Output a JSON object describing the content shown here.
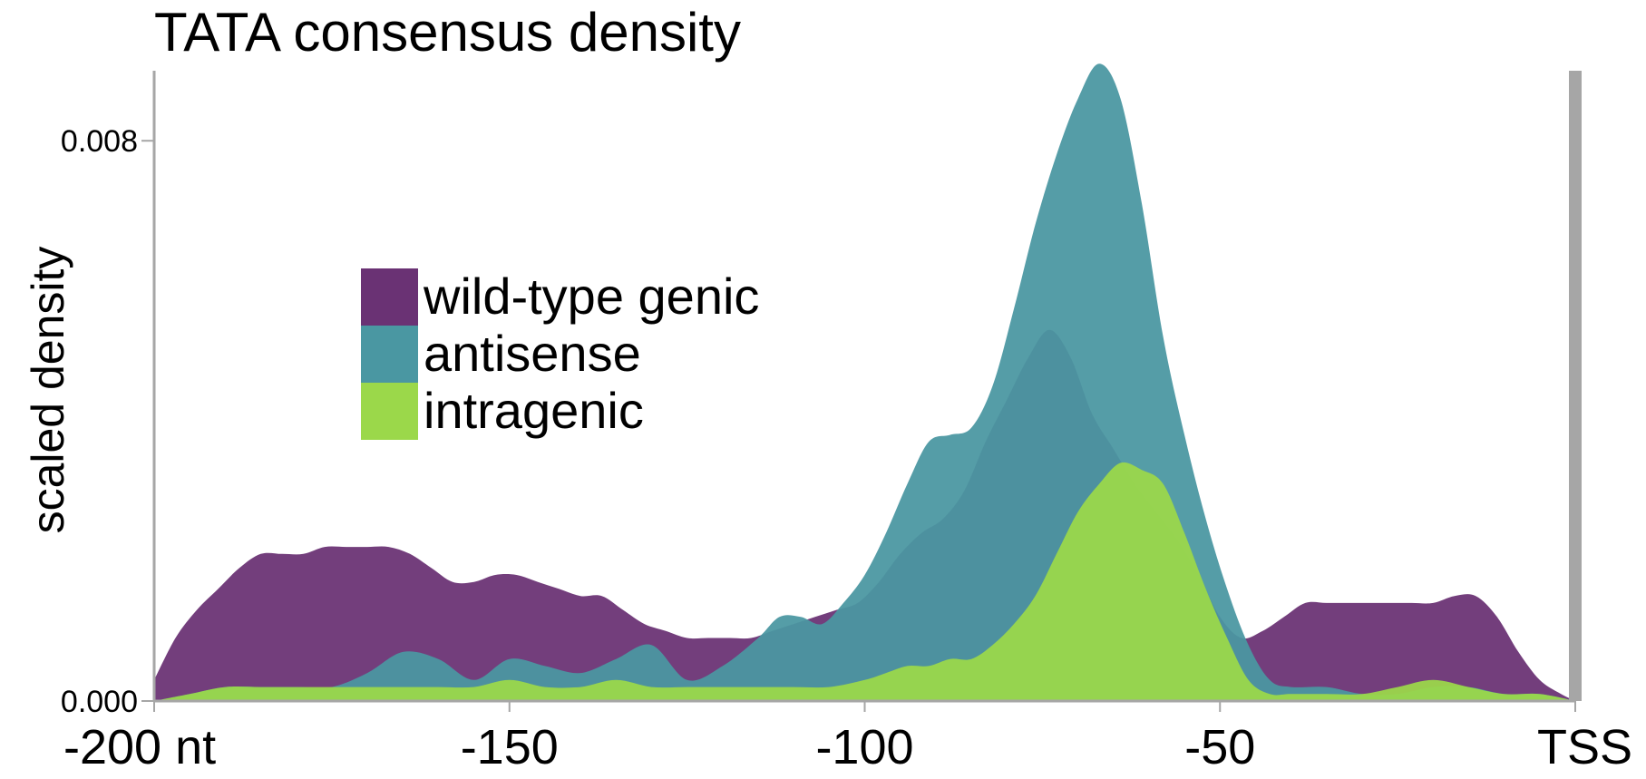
{
  "chart_data": {
    "type": "area",
    "title": "TATA consensus density",
    "xlabel": "",
    "ylabel": "scaled density",
    "xlim": [
      -200,
      0
    ],
    "ylim": [
      0,
      0.009
    ],
    "yticks": [
      {
        "value": 0.0,
        "label": "0.000"
      },
      {
        "value": 0.008,
        "label": "0.008"
      }
    ],
    "xticks": [
      {
        "value": -200,
        "label": "-200 nt"
      },
      {
        "value": -150,
        "label": "-150"
      },
      {
        "value": -100,
        "label": "-100"
      },
      {
        "value": -50,
        "label": "-50"
      },
      {
        "value": 0,
        "label": "TSS"
      }
    ],
    "legend_position": "upper-left",
    "series": [
      {
        "name": "wild-type genic",
        "color": "#6a3274",
        "x": [
          -200,
          -197,
          -194,
          -191,
          -188,
          -185,
          -182,
          -179,
          -176,
          -173,
          -170,
          -167,
          -164,
          -161,
          -158,
          -155,
          -152,
          -149,
          -146,
          -143,
          -140,
          -137,
          -134,
          -131,
          -128,
          -125,
          -122,
          -119,
          -116,
          -113,
          -110,
          -107,
          -104,
          -101,
          -98,
          -95,
          -92,
          -89,
          -86,
          -83,
          -80,
          -77,
          -74,
          -71,
          -68,
          -65,
          -62,
          -59,
          -56,
          -53,
          -50,
          -47,
          -44,
          -41,
          -38,
          -35,
          -32,
          -29,
          -26,
          -23,
          -20,
          -17,
          -14,
          -11,
          -8,
          -5,
          -2,
          0
        ],
        "values": [
          0.0003,
          0.0009,
          0.0013,
          0.0016,
          0.0019,
          0.0021,
          0.0021,
          0.0021,
          0.0022,
          0.0022,
          0.0022,
          0.0022,
          0.0021,
          0.0019,
          0.0017,
          0.0017,
          0.0018,
          0.0018,
          0.0017,
          0.0016,
          0.0015,
          0.0015,
          0.0013,
          0.0011,
          0.001,
          0.0009,
          0.0009,
          0.0009,
          0.0009,
          0.001,
          0.0011,
          0.0012,
          0.0013,
          0.0014,
          0.0017,
          0.0021,
          0.0024,
          0.0026,
          0.003,
          0.0037,
          0.0043,
          0.0049,
          0.0053,
          0.0049,
          0.0041,
          0.0036,
          0.0031,
          0.0027,
          0.0023,
          0.0018,
          0.0012,
          0.0009,
          0.001,
          0.0012,
          0.0014,
          0.0014,
          0.0014,
          0.0014,
          0.0014,
          0.0014,
          0.0014,
          0.0015,
          0.0015,
          0.0012,
          0.0007,
          0.0003,
          0.0001,
          0.0
        ]
      },
      {
        "name": "antisense",
        "color": "#4a97a2",
        "x": [
          -200,
          -195,
          -190,
          -185,
          -180,
          -175,
          -170,
          -165,
          -160,
          -155,
          -150,
          -145,
          -140,
          -135,
          -130,
          -125,
          -120,
          -115,
          -112,
          -109,
          -106,
          -103,
          -100,
          -97,
          -94,
          -91,
          -88,
          -85,
          -82,
          -79,
          -76,
          -73,
          -70,
          -67,
          -64,
          -61,
          -58,
          -55,
          -52,
          -49,
          -46,
          -43,
          -40,
          -35,
          -30,
          -25,
          -20,
          -15,
          -10,
          -5,
          0
        ],
        "values": [
          0.0,
          0.0001,
          0.0002,
          0.0002,
          0.0002,
          0.0002,
          0.0004,
          0.0007,
          0.0006,
          0.0003,
          0.0006,
          0.0005,
          0.0004,
          0.0006,
          0.0008,
          0.0003,
          0.0005,
          0.0009,
          0.0012,
          0.0012,
          0.0011,
          0.0014,
          0.0018,
          0.0024,
          0.0031,
          0.0037,
          0.0038,
          0.0039,
          0.0045,
          0.0056,
          0.0068,
          0.0078,
          0.0086,
          0.0091,
          0.0086,
          0.0071,
          0.0052,
          0.0038,
          0.0026,
          0.0016,
          0.0008,
          0.0003,
          0.0002,
          0.0002,
          0.0001,
          0.0001,
          0.0002,
          0.0002,
          0.0001,
          0.0001,
          0.0
        ]
      },
      {
        "name": "intragenic",
        "color": "#9bd84a",
        "x": [
          -200,
          -195,
          -190,
          -185,
          -180,
          -175,
          -170,
          -165,
          -160,
          -155,
          -150,
          -145,
          -140,
          -135,
          -130,
          -125,
          -120,
          -115,
          -110,
          -105,
          -100,
          -97,
          -94,
          -91,
          -88,
          -85,
          -82,
          -79,
          -76,
          -73,
          -70,
          -67,
          -64,
          -61,
          -58,
          -55,
          -52,
          -49,
          -46,
          -43,
          -40,
          -35,
          -30,
          -25,
          -20,
          -15,
          -10,
          -5,
          0
        ],
        "values": [
          0.0,
          0.0001,
          0.0002,
          0.0002,
          0.0002,
          0.0002,
          0.0002,
          0.0002,
          0.0002,
          0.0002,
          0.0003,
          0.0002,
          0.0002,
          0.0003,
          0.0002,
          0.0002,
          0.0002,
          0.0002,
          0.0002,
          0.0002,
          0.0003,
          0.0004,
          0.0005,
          0.0005,
          0.0006,
          0.0006,
          0.0008,
          0.0011,
          0.0015,
          0.0021,
          0.0027,
          0.0031,
          0.0034,
          0.0033,
          0.0031,
          0.0024,
          0.0016,
          0.0009,
          0.0003,
          0.0001,
          0.0001,
          0.0001,
          0.0001,
          0.0002,
          0.0003,
          0.0002,
          0.0001,
          0.0001,
          0.0
        ]
      }
    ]
  }
}
